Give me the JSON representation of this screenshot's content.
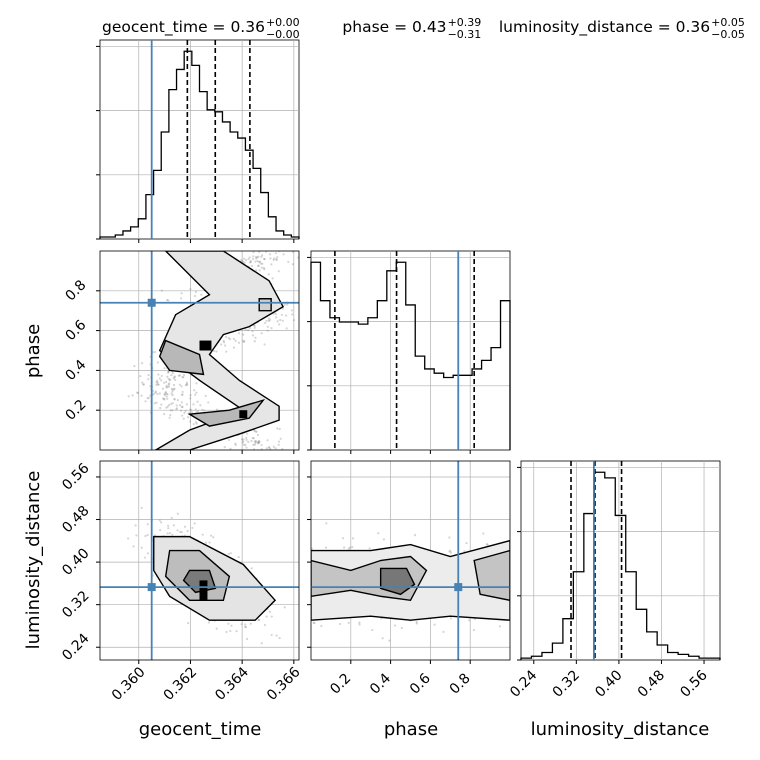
{
  "chart_data": {
    "type": "corner",
    "truth_color": "#4682b4",
    "parameters": [
      {
        "name": "geocent_time",
        "axis_label": "geocent_time",
        "title_main": "geocent_time = 0.36",
        "title_plus": "+0.00",
        "title_minus": "−0.00",
        "range": [
          0.3585,
          0.3662
        ],
        "ticks": [
          {
            "value": 0.36,
            "label": "0.360"
          },
          {
            "value": 0.362,
            "label": "0.362"
          },
          {
            "value": 0.364,
            "label": "0.364"
          },
          {
            "value": 0.366,
            "label": "0.366"
          }
        ],
        "truth": 0.3605,
        "quantiles": [
          0.36188,
          0.36296,
          0.3643
        ],
        "histogram": [
          1,
          1,
          2,
          4,
          6,
          10,
          22,
          34,
          53,
          74,
          84,
          93,
          86,
          73,
          64,
          63,
          58,
          53,
          50,
          44,
          35,
          23,
          11,
          4,
          2,
          1
        ]
      },
      {
        "name": "phase",
        "axis_label": "phase",
        "title_main": "phase = 0.43",
        "title_plus": "+0.39",
        "title_minus": "−0.31",
        "range": [
          0.0,
          1.0
        ],
        "ticks": [
          {
            "value": 0.2,
            "label": "0.2"
          },
          {
            "value": 0.4,
            "label": "0.4"
          },
          {
            "value": 0.6,
            "label": "0.6"
          },
          {
            "value": 0.8,
            "label": "0.8"
          }
        ],
        "truth": 0.74,
        "quantiles": [
          0.12,
          0.43,
          0.82
        ],
        "histogram": [
          88,
          70,
          62,
          60,
          60,
          59,
          62,
          70,
          84,
          88,
          68,
          44,
          38,
          36,
          34,
          35,
          35,
          38,
          42,
          48,
          70
        ]
      },
      {
        "name": "luminosity_distance",
        "axis_label": "luminosity_distance",
        "title_main": "luminosity_distance = 0.36",
        "title_plus": "+0.05",
        "title_minus": "−0.05",
        "range": [
          0.216,
          0.59
        ],
        "ticks": [
          {
            "value": 0.24,
            "label": "0.24"
          },
          {
            "value": 0.32,
            "label": "0.32"
          },
          {
            "value": 0.4,
            "label": "0.40"
          },
          {
            "value": 0.48,
            "label": "0.48"
          },
          {
            "value": 0.56,
            "label": "0.56"
          }
        ],
        "truth": 0.353,
        "quantiles": [
          0.31,
          0.355,
          0.405
        ],
        "histogram": [
          1,
          2,
          4,
          9,
          22,
          47,
          78,
          100,
          97,
          77,
          47,
          27,
          15,
          8,
          4,
          3,
          2,
          1,
          1
        ]
      }
    ]
  }
}
